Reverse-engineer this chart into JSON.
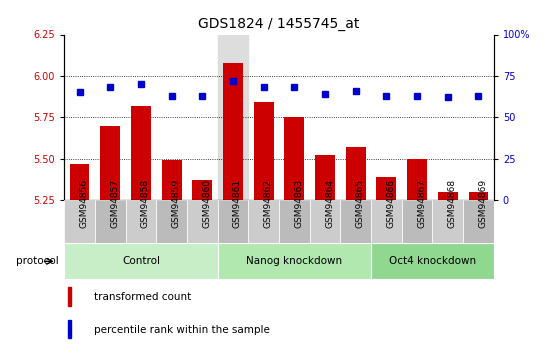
{
  "title": "GDS1824 / 1455745_at",
  "samples": [
    "GSM94856",
    "GSM94857",
    "GSM94858",
    "GSM94859",
    "GSM94860",
    "GSM94861",
    "GSM94862",
    "GSM94863",
    "GSM94864",
    "GSM94865",
    "GSM94866",
    "GSM94867",
    "GSM94868",
    "GSM94869"
  ],
  "transformed_count": [
    5.47,
    5.7,
    5.82,
    5.49,
    5.37,
    6.08,
    5.84,
    5.75,
    5.52,
    5.57,
    5.39,
    5.5,
    5.3,
    5.3
  ],
  "percentile_rank": [
    65,
    68,
    70,
    63,
    63,
    72,
    68,
    68,
    64,
    66,
    63,
    63,
    62,
    63
  ],
  "groups": [
    {
      "label": "Control",
      "start": 0,
      "end": 5
    },
    {
      "label": "Nanog knockdown",
      "start": 5,
      "end": 10
    },
    {
      "label": "Oct4 knockdown",
      "start": 10,
      "end": 14
    }
  ],
  "group_colors": [
    "#c8eec8",
    "#b0e8b0",
    "#90d890"
  ],
  "ylim_left": [
    5.25,
    6.25
  ],
  "ylim_right": [
    0,
    100
  ],
  "yticks_left": [
    5.25,
    5.5,
    5.75,
    6.0,
    6.25
  ],
  "yticks_right": [
    0,
    25,
    50,
    75,
    100
  ],
  "bar_color": "#cc0000",
  "dot_color": "#0000cc",
  "bar_width": 0.65,
  "highlight_col": 5,
  "highlight_color": "#dddddd",
  "tick_bg_color": "#cccccc",
  "title_fontsize": 10,
  "tick_fontsize": 7,
  "sample_fontsize": 6.5
}
